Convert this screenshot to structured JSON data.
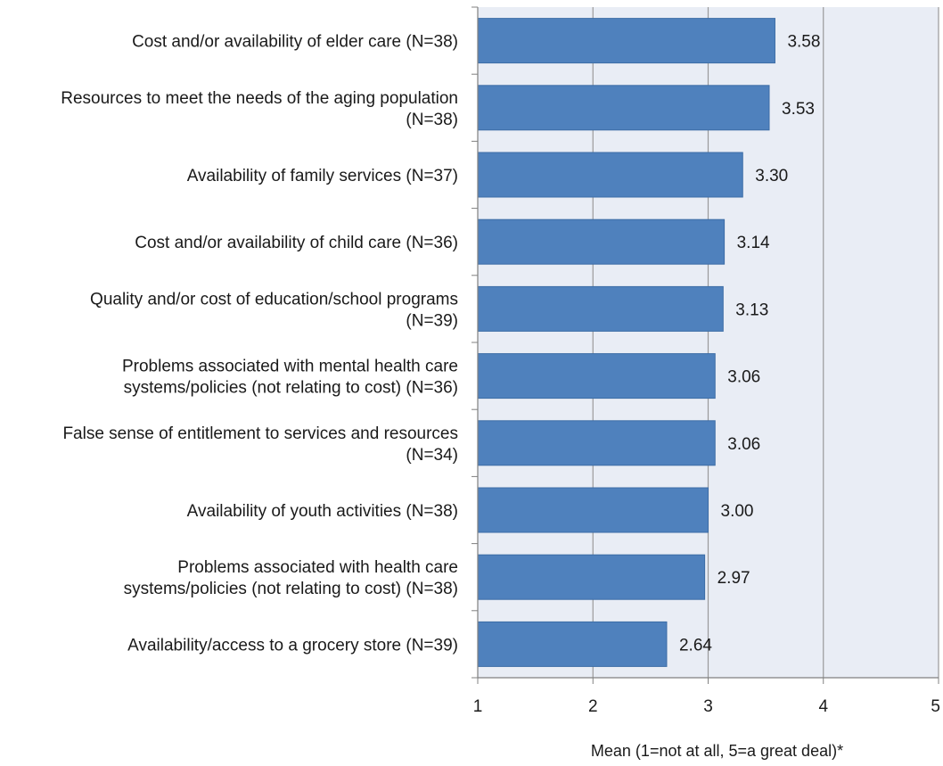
{
  "chart_data": {
    "type": "bar",
    "orientation": "horizontal",
    "categories": [
      "Cost and/or availability of elder care (N=38)",
      "Resources to meet the needs of the aging population (N=38)",
      "Availability of family services (N=37)",
      "Cost and/or availability of child care (N=36)",
      "Quality and/or cost of education/school programs (N=39)",
      "Problems associated with mental health care systems/policies (not relating to cost) (N=36)",
      "False sense of entitlement to services and resources (N=34)",
      "Availability of youth activities (N=38)",
      "Problems associated with health care systems/policies (not relating to cost) (N=38)",
      "Availability/access to a grocery store (N=39)"
    ],
    "category_lines": [
      [
        "Cost and/or availability of elder care (N=38)"
      ],
      [
        "Resources to meet the needs of the aging population",
        "(N=38)"
      ],
      [
        "Availability of family services (N=37)"
      ],
      [
        "Cost and/or availability of child care (N=36)"
      ],
      [
        "Quality and/or cost of education/school programs",
        "(N=39)"
      ],
      [
        "Problems associated with mental health care",
        "systems/policies (not relating to cost) (N=36)"
      ],
      [
        "False sense of entitlement to services and resources",
        "(N=34)"
      ],
      [
        "Availability of youth activities (N=38)"
      ],
      [
        "Problems associated with health care",
        "systems/policies (not relating to cost) (N=38)"
      ],
      [
        "Availability/access to a grocery store (N=39)"
      ]
    ],
    "values": [
      3.58,
      3.53,
      3.3,
      3.14,
      3.13,
      3.06,
      3.06,
      3.0,
      2.97,
      2.64
    ],
    "value_labels": [
      "3.58",
      "3.53",
      "3.30",
      "3.14",
      "3.13",
      "3.06",
      "3.06",
      "3.00",
      "2.97",
      "2.64"
    ],
    "xlim": [
      1,
      5
    ],
    "xticks": [
      "1",
      "2",
      "3",
      "4",
      "5"
    ],
    "xlabel": "Mean (1=not at all, 5=a great deal)*",
    "ylabel": "",
    "title": "",
    "grid": true,
    "colors": {
      "bar": "#4f81bd",
      "bar_stroke": "#3d6da6",
      "plot_bg": "#e9edf5",
      "grid": "#9a9a9a"
    }
  }
}
